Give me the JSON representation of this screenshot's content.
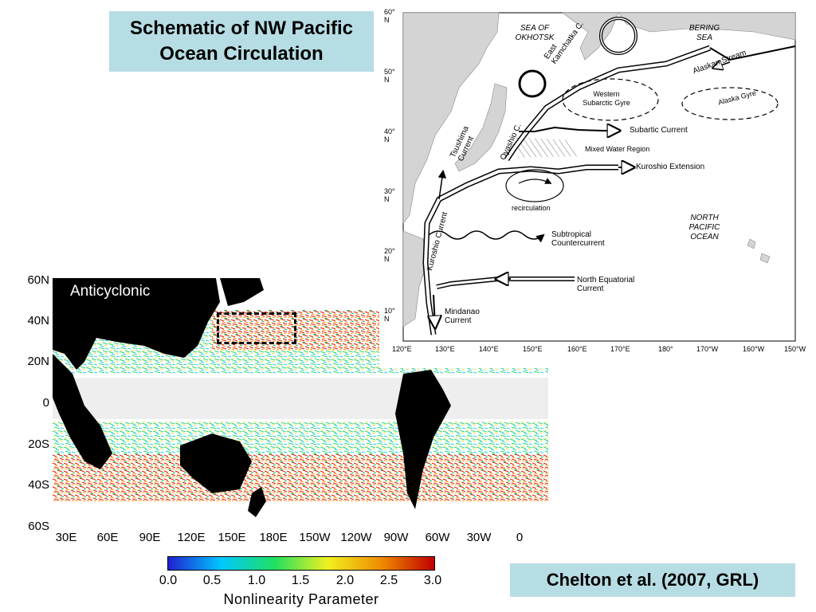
{
  "title": {
    "line1": "Schematic of NW Pacific",
    "line2": "Ocean Circulation"
  },
  "citation": "Chelton et al. (2007, GRL)",
  "global_map": {
    "panel_label": "Anticyclonic",
    "lat_ticks": [
      "60N",
      "40N",
      "20N",
      "0",
      "20S",
      "40S",
      "60S"
    ],
    "lon_ticks": [
      "30E",
      "60E",
      "90E",
      "120E",
      "150E",
      "180E",
      "150W",
      "120W",
      "90W",
      "60W",
      "30W",
      "0"
    ],
    "colorbar": {
      "label": "Nonlinearity Parameter",
      "ticks": [
        "0.0",
        "0.5",
        "1.0",
        "1.5",
        "2.0",
        "2.5",
        "3.0"
      ],
      "min": 0.0,
      "max": 3.0,
      "colors": [
        "#2020d0",
        "#00c8ff",
        "#20e060",
        "#f0f020",
        "#f08c00",
        "#c00000"
      ]
    },
    "colors": {
      "land": "#000000",
      "low_nonlinearity": "#f0f0f0"
    }
  },
  "schematic": {
    "lat_ticks": [
      "60° N",
      "50° N",
      "40° N",
      "30° N",
      "20° N",
      "10° N"
    ],
    "lon_ticks": [
      "120°E",
      "130°E",
      "140°E",
      "150°E",
      "160°E",
      "170°E",
      "180°",
      "170°W",
      "160°W",
      "150°W"
    ],
    "labels": {
      "sea_of_okhotsk": [
        "SEA OF",
        "OKHOTSK"
      ],
      "bering_sea": [
        "BERING",
        "SEA"
      ],
      "east_kamchatka": [
        "East",
        "Kamchatka C."
      ],
      "alaskan_stream": "Alaskan Stream",
      "western_subarctic_gyre": [
        "Western",
        "Subarctic Gyre"
      ],
      "alaska_gyre": "Alaska Gyre",
      "tsushima": [
        "Tsushima",
        "Current"
      ],
      "oyashio": "Oyashio C.",
      "subarctic_current": "Subartic Current",
      "mixed_water_region": "Mixed Water Region",
      "kuroshio_extension": "Kuroshio Extension",
      "recirculation": "recirculation",
      "kuroshio_current": "Kuroshio Current",
      "north_pacific_ocean": [
        "NORTH",
        "PACIFIC",
        "OCEAN"
      ],
      "subtropical_countercurrent": [
        "Subtropical",
        "Countercurrent"
      ],
      "north_equatorial_current": [
        "North Equatorial",
        "Current"
      ],
      "mindanao_current": [
        "Mindanao",
        "Current"
      ]
    }
  }
}
